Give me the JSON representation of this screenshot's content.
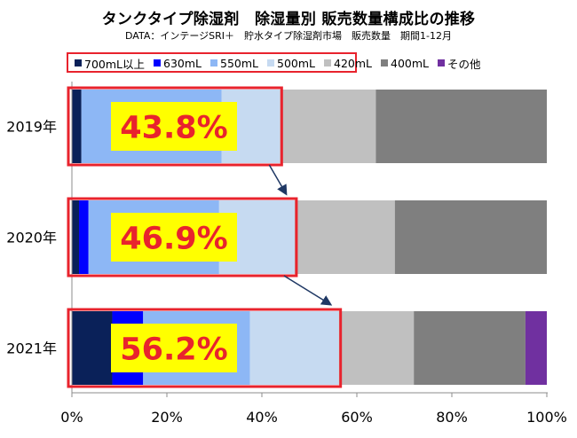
{
  "header": {
    "title": "タンクタイプ除湿剤　除湿量別 販売数量構成比の推移",
    "subtitle": "DATA：インテージSRI＋　貯水タイプ除湿剤市場　販売数量　期間1-12月"
  },
  "chart_data": {
    "type": "bar",
    "orientation": "horizontal",
    "stacked": "percent",
    "categories": [
      "2019年",
      "2020年",
      "2021年"
    ],
    "series": [
      {
        "name": "700mL以上",
        "color": "#0a2159",
        "values": [
          2.0,
          1.5,
          8.5
        ]
      },
      {
        "name": "630mL",
        "color": "#0000ff",
        "values": [
          0.0,
          2.0,
          6.5
        ]
      },
      {
        "name": "550mL",
        "color": "#8db7f5",
        "values": [
          29.5,
          27.5,
          22.5
        ]
      },
      {
        "name": "500mL",
        "color": "#c6daf1",
        "values": [
          12.3,
          15.9,
          18.7
        ]
      },
      {
        "name": "420mL",
        "color": "#c0c0c0",
        "values": [
          20.2,
          21.1,
          15.8
        ]
      },
      {
        "name": "400mL",
        "color": "#7f7f7f",
        "values": [
          36.0,
          32.0,
          23.5
        ]
      },
      {
        "name": "その他",
        "color": "#7030a0",
        "values": [
          0.0,
          0.0,
          4.5
        ]
      }
    ],
    "highlight_labels": [
      "43.8%",
      "46.9%",
      "56.2%"
    ],
    "xlim": [
      0,
      100
    ],
    "xticks": [
      "0%",
      "20%",
      "40%",
      "60%",
      "80%",
      "100%"
    ],
    "grid": false,
    "legend": "top",
    "highlight_color": "#e8232d",
    "label_bg": "#ffff00"
  }
}
